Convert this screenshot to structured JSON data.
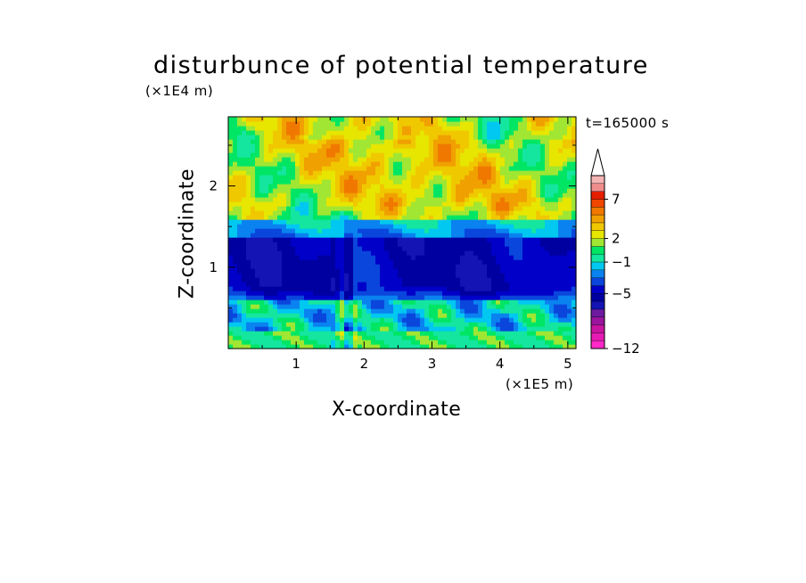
{
  "chart_data": {
    "type": "heatmap",
    "title": "disturbunce of potential temperature",
    "xlabel": "X-coordinate",
    "ylabel": "Z-coordinate",
    "x_unit_label": "(×1E5 m)",
    "y_unit_label": "(×1E4 m)",
    "timestamp": "t=165000 s",
    "xlim": [
      0,
      5.12
    ],
    "ylim": [
      0,
      2.85
    ],
    "x_ticks": [
      1,
      2,
      3,
      4,
      5
    ],
    "y_ticks": [
      1,
      2
    ],
    "colorbar": {
      "extend": "max",
      "levels_bottom_to_top": [
        -12,
        -11,
        -10,
        -9,
        -8,
        -7,
        -6,
        -5,
        -4,
        -3,
        -2,
        -1,
        0,
        1,
        2,
        3,
        4,
        5,
        6,
        7,
        8,
        9,
        10
      ],
      "tick_labels": [
        {
          "value": -12,
          "label": "−12"
        },
        {
          "value": -5,
          "label": "−5"
        },
        {
          "value": -1,
          "label": "−1"
        },
        {
          "value": 2,
          "label": "2"
        },
        {
          "value": 7,
          "label": "7"
        }
      ],
      "colors_bottom_to_top": [
        "#ff28c8",
        "#e61ab4",
        "#c814a0",
        "#9a149e",
        "#6e1aa0",
        "#1414b4",
        "#0000a0",
        "#0000c8",
        "#0a46dc",
        "#0a82f0",
        "#00c8f0",
        "#14e6a0",
        "#00e664",
        "#a0e632",
        "#e6e600",
        "#f0c800",
        "#f0a000",
        "#f07800",
        "#f04600",
        "#e61e00",
        "#f08c8c",
        "#f5b4b4"
      ]
    },
    "field_description_bands": [
      {
        "z_range": [
          0.0,
          0.2
        ],
        "value_range": [
          -1,
          1
        ]
      },
      {
        "z_range": [
          0.2,
          0.6
        ],
        "value_range": [
          -3,
          3
        ]
      },
      {
        "z_range": [
          0.6,
          1.35
        ],
        "value_range": [
          -6,
          -4
        ]
      },
      {
        "z_range": [
          1.35,
          1.6
        ],
        "value_range": [
          -2,
          0
        ]
      },
      {
        "z_range": [
          1.6,
          2.85
        ],
        "value_range": [
          1,
          5
        ]
      }
    ]
  },
  "colors": {
    "frame": "#000000",
    "background": "#ffffff"
  }
}
